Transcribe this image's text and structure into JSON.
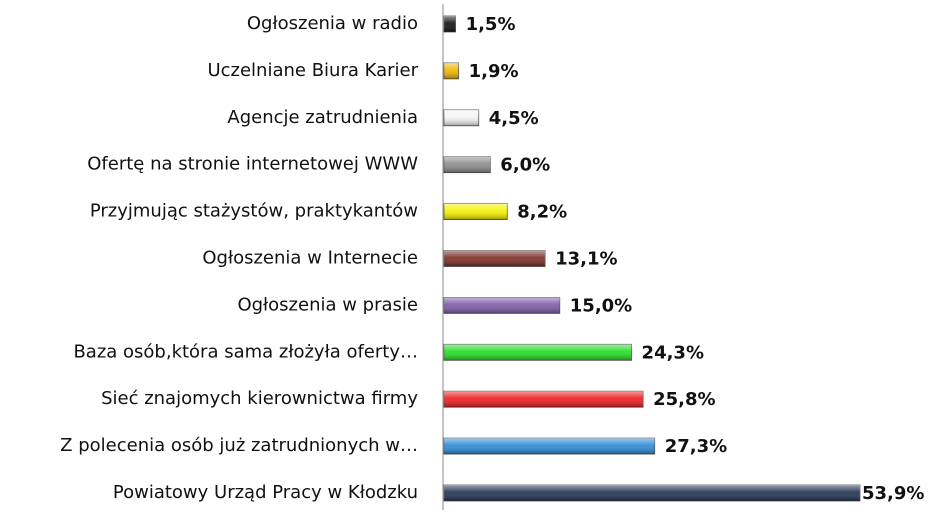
{
  "chart_data": {
    "type": "hbar",
    "categories": [
      "Ogłoszenia w radio",
      "Uczelniane Biura Karier",
      "Agencje zatrudnienia",
      "Ofertę na stronie internetowej WWW",
      "Przyjmując stażystów, praktykantów",
      "Ogłoszenia w Internecie",
      "Ogłoszenia w prasie",
      "Baza osób,która sama złożyła oferty…",
      "Sieć znajomych kierownictwa firmy",
      "Z polecenia osób już zatrudnionych w…",
      "Powiatowy Urząd Pracy w Kłodzku"
    ],
    "values": [
      1.5,
      1.9,
      4.5,
      6.0,
      8.2,
      13.1,
      15.0,
      24.3,
      25.8,
      27.3,
      53.9
    ],
    "value_labels": [
      "1,5%",
      "1,9%",
      "4,5%",
      "6,0%",
      "8,2%",
      "13,1%",
      "15,0%",
      "24,3%",
      "25,8%",
      "27,3%",
      "53,9%"
    ],
    "colors": [
      "#111111",
      "#f0b400",
      "#f4f4f4",
      "#8a8a8a",
      "#f5f000",
      "#7a2a22",
      "#7b5aa6",
      "#22dd22",
      "#ee1a1a",
      "#2a8ad8",
      "#1f3050"
    ]
  }
}
